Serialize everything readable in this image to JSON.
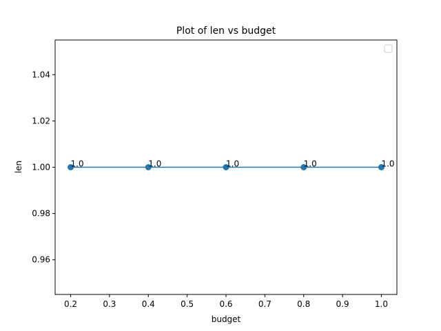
{
  "colors": {
    "series": "#1f77b4",
    "axes": "#000000",
    "background": "#ffffff"
  },
  "chart_data": {
    "type": "line",
    "title": "Plot of len vs budget",
    "xlabel": "budget",
    "ylabel": "len",
    "x": [
      0.2,
      0.4,
      0.6,
      0.8,
      1.0
    ],
    "series": [
      {
        "values": [
          1.0,
          1.0,
          1.0,
          1.0,
          1.0
        ],
        "markers": "circle",
        "data_labels": [
          "1.0",
          "1.0",
          "1.0",
          "1.0",
          "1.0"
        ]
      }
    ],
    "xlim": [
      0.16,
      1.04
    ],
    "ylim": [
      0.945,
      1.055
    ],
    "xticks": [
      0.2,
      0.3,
      0.4,
      0.5,
      0.6,
      0.7,
      0.8,
      0.9,
      1.0
    ],
    "xtick_labels": [
      "0.2",
      "0.3",
      "0.4",
      "0.5",
      "0.6",
      "0.7",
      "0.8",
      "0.9",
      "1.0"
    ],
    "yticks": [
      0.96,
      0.98,
      1.0,
      1.02,
      1.04
    ],
    "ytick_labels": [
      "0.96",
      "0.98",
      "1.00",
      "1.02",
      "1.04"
    ],
    "grid": false,
    "legend": {
      "placement": "upper-right",
      "entries": []
    }
  }
}
